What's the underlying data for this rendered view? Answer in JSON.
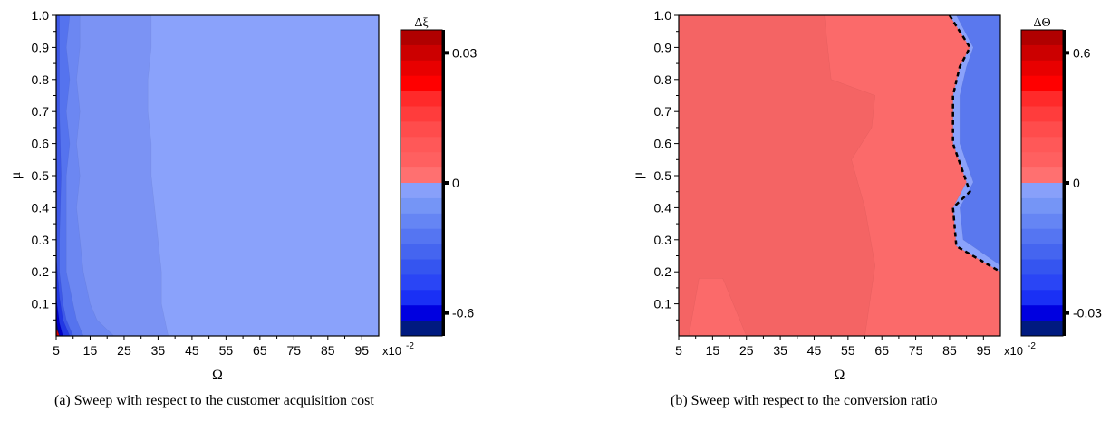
{
  "chart_data": [
    {
      "type": "heatmap",
      "panel": "a",
      "caption": "(a) Sweep with respect to the customer acquisition cost",
      "xlabel": "Ω",
      "ylabel": "μ",
      "x_multiplier_label": "x10-2",
      "x_ticks": [
        5,
        15,
        25,
        35,
        45,
        55,
        65,
        75,
        85,
        95
      ],
      "y_ticks": [
        0.1,
        0.2,
        0.3,
        0.4,
        0.5,
        0.6,
        0.7,
        0.8,
        0.9,
        1.0
      ],
      "x_tick_labels": [
        "5",
        "15",
        "25",
        "35",
        "45",
        "55",
        "65",
        "75",
        "85",
        "95"
      ],
      "y_tick_labels": [
        "0.1",
        "0.2",
        "0.3",
        "0.4",
        "0.5",
        "0.6",
        "0.7",
        "0.8",
        "0.9",
        "1.0"
      ],
      "xlim": [
        5,
        100
      ],
      "ylim": [
        0.0,
        1.0
      ],
      "colorbar": {
        "title": "Δξ",
        "tick_values": [
          0.03,
          0,
          -0.6
        ],
        "tick_labels": [
          "0.03",
          "0",
          "-0.6"
        ],
        "negative_colors": [
          "#001a80",
          "#0000e0",
          "#1a30f5",
          "#2a45f5",
          "#3555f0",
          "#4565f0",
          "#5575f2",
          "#6585f4",
          "#7595f6",
          "#88a0fa"
        ],
        "positive_colors": [
          "#ff7070",
          "#ff6060",
          "#ff5858",
          "#ff4c4c",
          "#ff3c3c",
          "#ff2a2a",
          "#ff0000",
          "#e80000",
          "#cc0000",
          "#b00000"
        ]
      },
      "regions": [
        {
          "level": -0.02,
          "color": "#7b93f4",
          "boundary": [
            [
              5,
              1.0
            ],
            [
              5,
              0.0
            ],
            [
              38,
              0.0
            ],
            [
              36,
              0.1
            ],
            [
              36,
              0.2
            ],
            [
              35,
              0.3
            ],
            [
              34,
              0.4
            ],
            [
              33,
              0.5
            ],
            [
              33,
              0.6
            ],
            [
              32,
              0.7
            ],
            [
              32,
              0.8
            ],
            [
              33,
              0.9
            ],
            [
              33,
              1.0
            ]
          ]
        },
        {
          "level": -0.06,
          "color": "#6c87f2",
          "boundary": [
            [
              5,
              1.0
            ],
            [
              5,
              0.0
            ],
            [
              22,
              0.0
            ],
            [
              17,
              0.05
            ],
            [
              15,
              0.1
            ],
            [
              13,
              0.2
            ],
            [
              12,
              0.3
            ],
            [
              11,
              0.4
            ],
            [
              12,
              0.5
            ],
            [
              11,
              0.6
            ],
            [
              12,
              0.7
            ],
            [
              11,
              0.8
            ],
            [
              12,
              0.9
            ],
            [
              12,
              1.0
            ]
          ]
        },
        {
          "level": -0.1,
          "color": "#5573ee",
          "boundary": [
            [
              5,
              1.0
            ],
            [
              5,
              0.0
            ],
            [
              13,
              0.0
            ],
            [
              11,
              0.05
            ],
            [
              10,
              0.1
            ],
            [
              8,
              0.2
            ],
            [
              8,
              0.3
            ],
            [
              8,
              0.4
            ],
            [
              8,
              0.5
            ],
            [
              9,
              0.6
            ],
            [
              8,
              0.7
            ],
            [
              9,
              0.8
            ],
            [
              8,
              0.9
            ],
            [
              9,
              1.0
            ]
          ]
        },
        {
          "level": -0.16,
          "color": "#3d58e8",
          "boundary": [
            [
              5,
              1.0
            ],
            [
              5,
              0.0
            ],
            [
              10,
              0.0
            ],
            [
              8,
              0.05
            ],
            [
              7,
              0.1
            ],
            [
              6,
              0.2
            ],
            [
              6,
              0.3
            ],
            [
              6.5,
              0.5
            ],
            [
              6,
              0.7
            ],
            [
              6,
              1.0
            ]
          ]
        },
        {
          "level": -0.3,
          "color": "#2238e4",
          "boundary": [
            [
              5,
              0.25
            ],
            [
              5,
              0.0
            ],
            [
              9,
              0.0
            ],
            [
              7,
              0.05
            ],
            [
              6,
              0.12
            ]
          ]
        },
        {
          "level": -0.5,
          "color": "#0000c8",
          "boundary": [
            [
              5,
              0.12
            ],
            [
              5,
              0.0
            ],
            [
              7,
              0.0
            ],
            [
              6,
              0.04
            ]
          ]
        },
        {
          "level": -0.6,
          "color": "#001070",
          "boundary": [
            [
              5,
              0.05
            ],
            [
              5,
              0.0
            ],
            [
              6,
              0.0
            ]
          ]
        },
        {
          "level": 0.03,
          "color": "#d00000",
          "boundary": [
            [
              5,
              0.025
            ],
            [
              5,
              0.0
            ],
            [
              6,
              0.0
            ]
          ]
        }
      ],
      "base_level": -0.01,
      "base_color": "#8aa2fb"
    },
    {
      "type": "heatmap",
      "panel": "b",
      "caption": "(b) Sweep with respect to the conversion ratio",
      "xlabel": "Ω",
      "ylabel": "μ",
      "x_multiplier_label": "x10-2",
      "x_ticks": [
        5,
        15,
        25,
        35,
        45,
        55,
        65,
        75,
        85,
        95
      ],
      "y_ticks": [
        0.1,
        0.2,
        0.3,
        0.4,
        0.5,
        0.6,
        0.7,
        0.8,
        0.9,
        1.0
      ],
      "x_tick_labels": [
        "5",
        "15",
        "25",
        "35",
        "45",
        "55",
        "65",
        "75",
        "85",
        "95"
      ],
      "y_tick_labels": [
        "0.1",
        "0.2",
        "0.3",
        "0.4",
        "0.5",
        "0.6",
        "0.7",
        "0.8",
        "0.9",
        "1.0"
      ],
      "xlim": [
        5,
        100
      ],
      "ylim": [
        0.0,
        1.0
      ],
      "colorbar": {
        "title": "ΔΘ",
        "tick_values": [
          0.6,
          0,
          -0.03
        ],
        "tick_labels": [
          "0.6",
          "0",
          "-0.03"
        ],
        "negative_colors": [
          "#001a80",
          "#0000e0",
          "#1a30f5",
          "#2a45f5",
          "#3555f0",
          "#4565f0",
          "#5575f2",
          "#6585f4",
          "#7595f6",
          "#88a0fa"
        ],
        "positive_colors": [
          "#ff7070",
          "#ff6060",
          "#ff5858",
          "#ff4c4c",
          "#ff3c3c",
          "#ff2a2a",
          "#ff0000",
          "#e80000",
          "#cc0000",
          "#b00000"
        ]
      },
      "regions": [
        {
          "level": 0.05,
          "color": "#fb6a6a",
          "boundary": [
            [
              5,
              1.0
            ],
            [
              5,
              0.0
            ],
            [
              100,
              0.0
            ],
            [
              100,
              0.2
            ],
            [
              87,
              0.28
            ],
            [
              86,
              0.4
            ],
            [
              90,
              0.48
            ],
            [
              86,
              0.6
            ],
            [
              86,
              0.75
            ],
            [
              88,
              0.84
            ],
            [
              91,
              0.9
            ],
            [
              85,
              1.0
            ]
          ]
        },
        {
          "level": 0.08,
          "color": "#f46464",
          "boundary": [
            [
              5,
              1.0
            ],
            [
              5,
              0.0
            ],
            [
              8,
              0.0
            ],
            [
              11,
              0.18
            ],
            [
              18,
              0.18
            ],
            [
              25,
              0.0
            ],
            [
              60,
              0.0
            ],
            [
              63,
              0.22
            ],
            [
              60,
              0.4
            ],
            [
              56,
              0.55
            ],
            [
              62,
              0.65
            ],
            [
              63,
              0.75
            ],
            [
              50,
              0.8
            ],
            [
              49,
              0.9
            ],
            [
              48,
              1.0
            ]
          ]
        },
        {
          "level": -0.005,
          "color": "#8aa2fb",
          "boundary": [
            [
              85,
              1.0
            ],
            [
              91,
              0.9
            ],
            [
              88,
              0.84
            ],
            [
              86,
              0.75
            ],
            [
              86,
              0.6
            ],
            [
              90,
              0.48
            ],
            [
              86,
              0.4
            ],
            [
              87,
              0.28
            ],
            [
              100,
              0.2
            ],
            [
              100,
              1.0
            ]
          ]
        },
        {
          "level": -0.01,
          "color": "#5a78ee",
          "boundary": [
            [
              87,
              1.0
            ],
            [
              92,
              0.9
            ],
            [
              90,
              0.84
            ],
            [
              88,
              0.75
            ],
            [
              88,
              0.6
            ],
            [
              92,
              0.48
            ],
            [
              88,
              0.4
            ],
            [
              89,
              0.3
            ],
            [
              100,
              0.22
            ],
            [
              100,
              1.0
            ]
          ]
        }
      ],
      "zero_contour": [
        [
          85,
          1.0
        ],
        [
          91,
          0.9
        ],
        [
          88,
          0.84
        ],
        [
          86,
          0.75
        ],
        [
          86,
          0.6
        ],
        [
          90,
          0.48
        ],
        [
          91,
          0.45
        ],
        [
          86,
          0.4
        ],
        [
          87,
          0.28
        ],
        [
          100,
          0.2
        ]
      ],
      "base_level": 0.02,
      "base_color": "#fb6b6b"
    }
  ]
}
